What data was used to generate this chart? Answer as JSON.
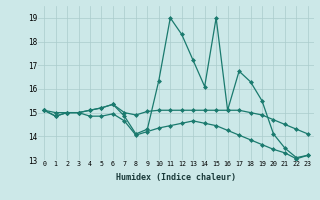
{
  "xlabel": "Humidex (Indice chaleur)",
  "bg_color": "#cce8e8",
  "line_color": "#1a7a6e",
  "grid_color": "#aacccc",
  "xlim": [
    -0.5,
    23.5
  ],
  "ylim": [
    13,
    19.5
  ],
  "yticks": [
    13,
    14,
    15,
    16,
    17,
    18,
    19
  ],
  "xticks": [
    0,
    1,
    2,
    3,
    4,
    5,
    6,
    7,
    8,
    9,
    10,
    11,
    12,
    13,
    14,
    15,
    16,
    17,
    18,
    19,
    20,
    21,
    22,
    23
  ],
  "series": [
    [
      15.1,
      14.85,
      15.0,
      15.0,
      15.1,
      15.2,
      15.35,
      14.85,
      14.1,
      14.3,
      16.35,
      19.0,
      18.3,
      17.2,
      16.1,
      19.0,
      15.1,
      16.75,
      16.3,
      15.5,
      14.1,
      13.5,
      13.1,
      13.2
    ],
    [
      15.1,
      15.0,
      15.0,
      15.0,
      15.1,
      15.2,
      15.35,
      15.0,
      14.9,
      15.05,
      15.1,
      15.1,
      15.1,
      15.1,
      15.1,
      15.1,
      15.1,
      15.1,
      15.0,
      14.9,
      14.7,
      14.5,
      14.3,
      14.1
    ],
    [
      15.1,
      14.85,
      15.0,
      15.0,
      14.85,
      14.85,
      14.95,
      14.65,
      14.05,
      14.2,
      14.35,
      14.45,
      14.55,
      14.65,
      14.55,
      14.45,
      14.25,
      14.05,
      13.85,
      13.65,
      13.45,
      13.3,
      13.05,
      13.2
    ]
  ]
}
